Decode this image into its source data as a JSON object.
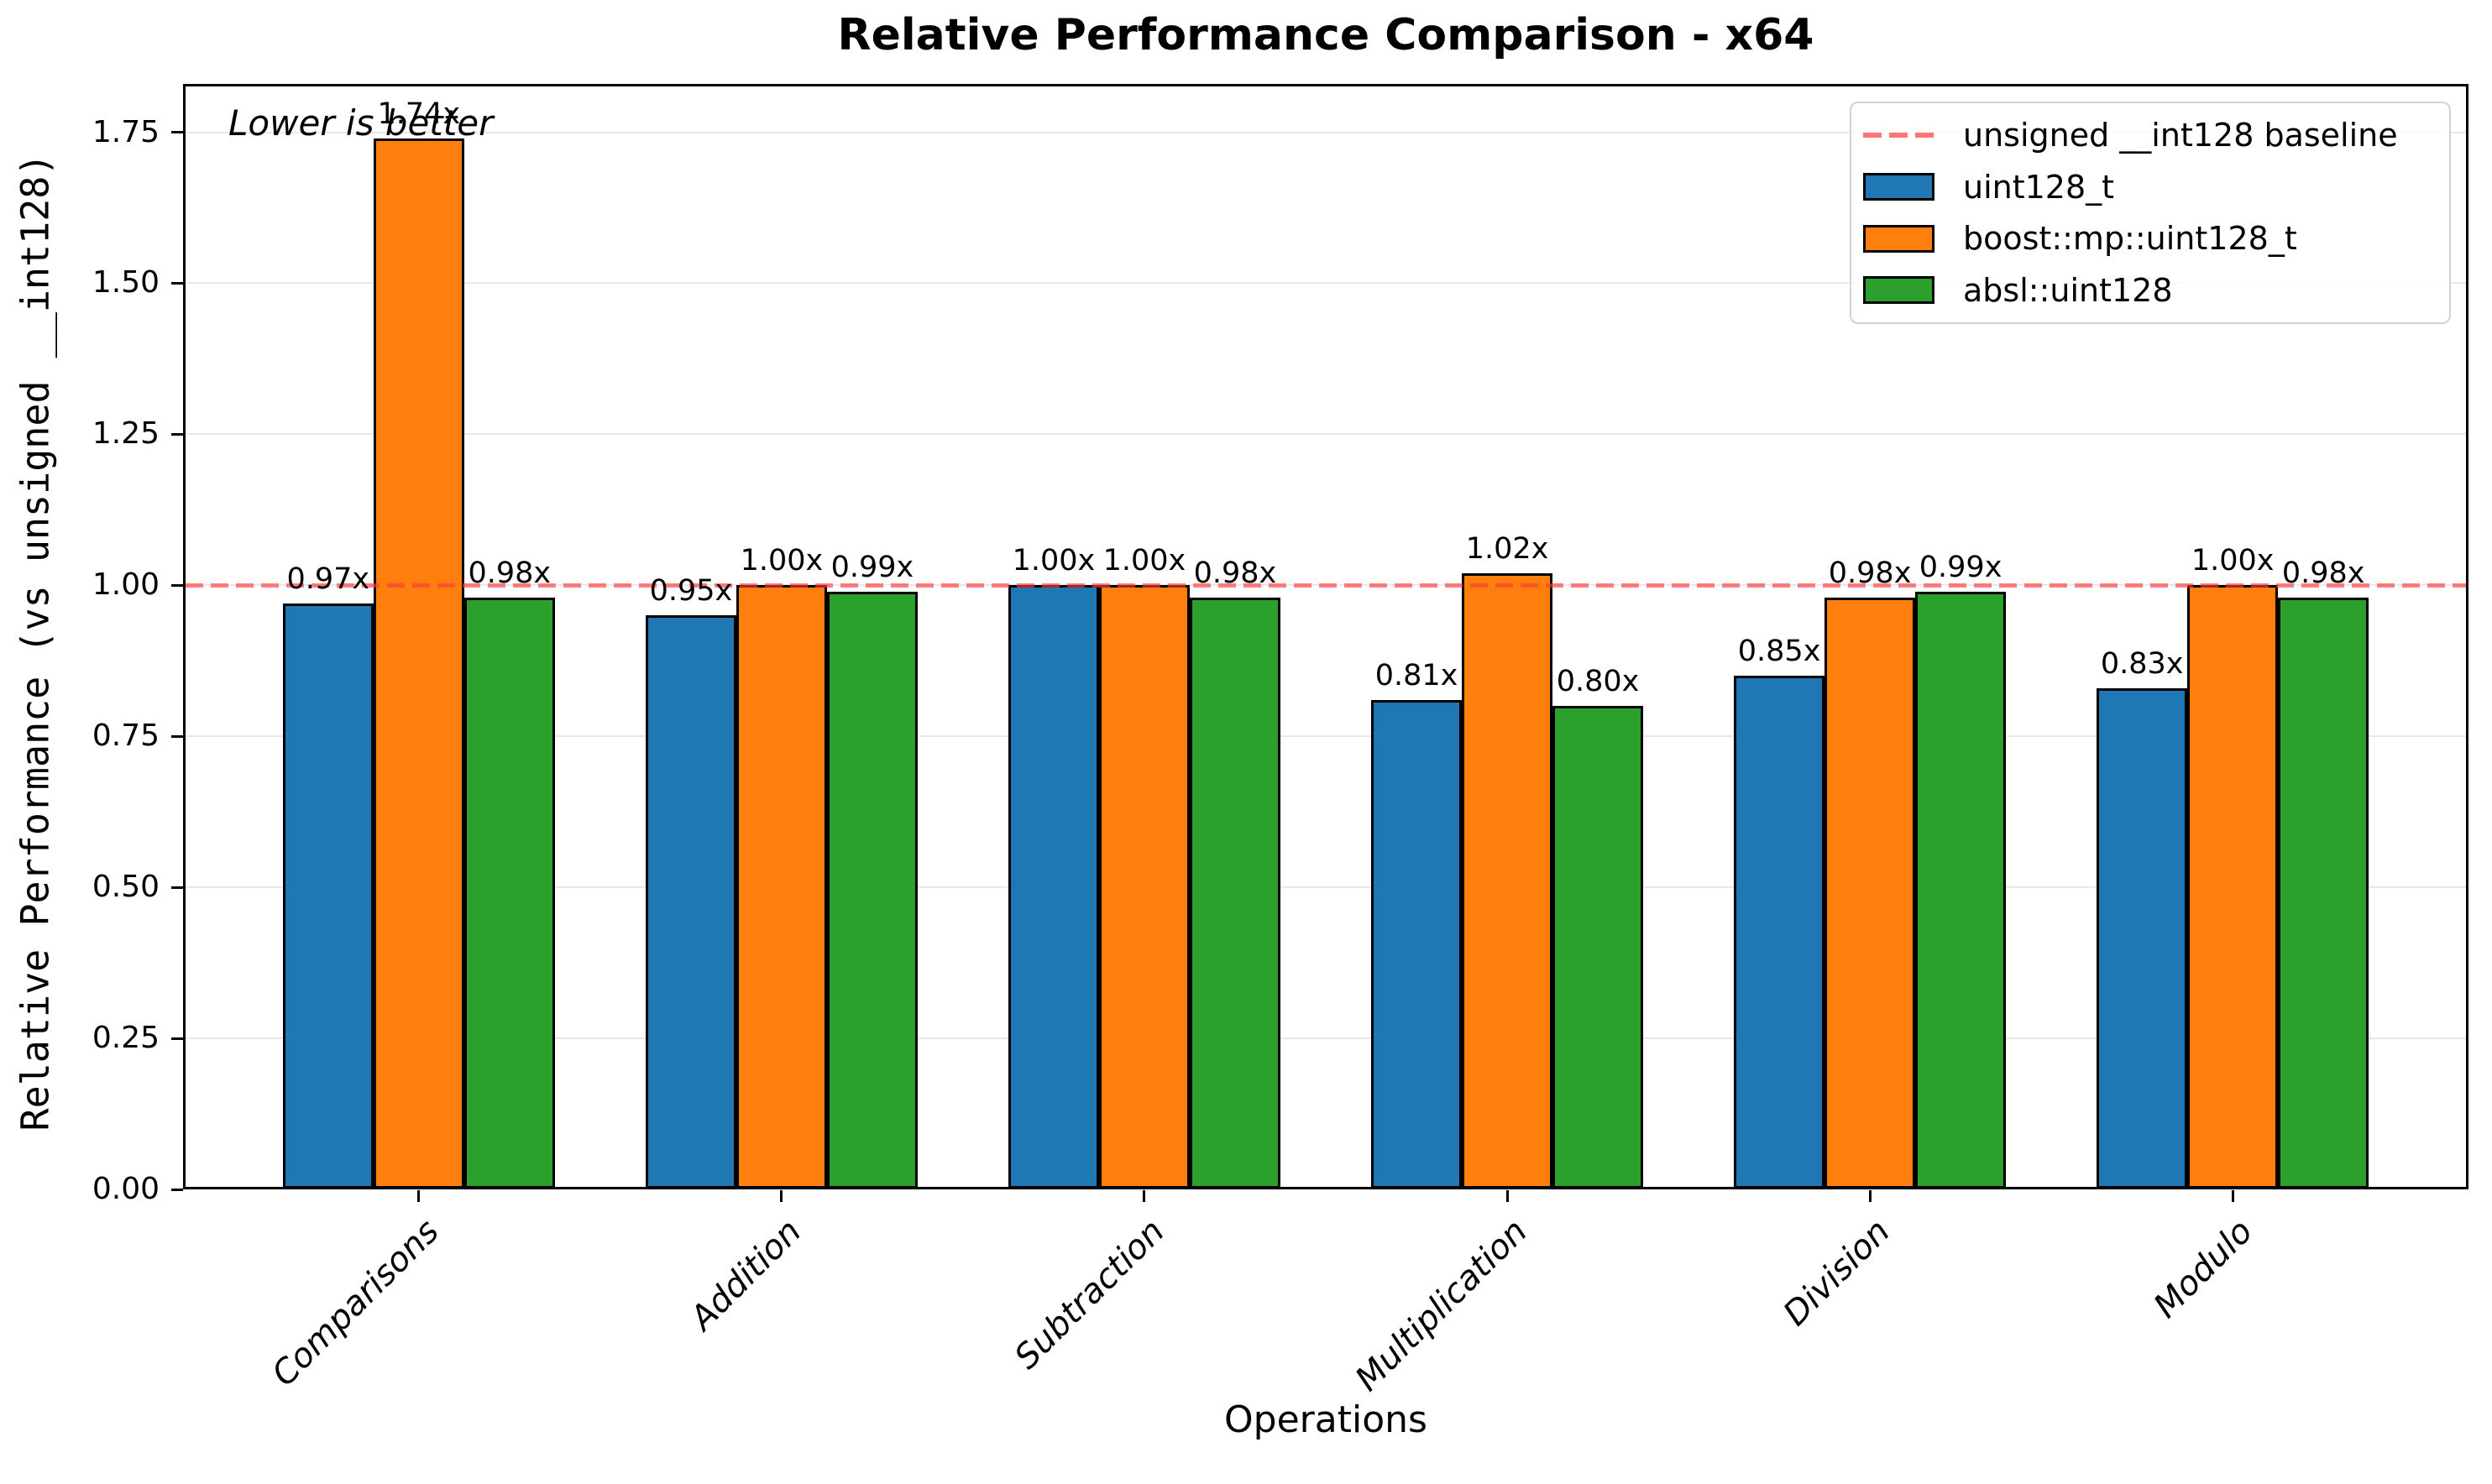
{
  "chart_data": {
    "type": "bar",
    "title": "Relative Performance Comparison - x64",
    "xlabel": "Operations",
    "ylabel": "Relative Performance (vs unsigned __int128)",
    "categories": [
      "Comparisons",
      "Addition",
      "Subtraction",
      "Multiplication",
      "Division",
      "Modulo"
    ],
    "series": [
      {
        "name": "uint128_t",
        "color": "#1f77b4",
        "values": [
          0.97,
          0.95,
          1.0,
          0.81,
          0.85,
          0.83
        ]
      },
      {
        "name": "boost::mp::uint128_t",
        "color": "#ff7f0e",
        "values": [
          1.74,
          1.0,
          1.0,
          1.02,
          0.98,
          1.0
        ]
      },
      {
        "name": "absl::uint128",
        "color": "#2ca02c",
        "values": [
          0.98,
          0.99,
          0.98,
          0.8,
          0.99,
          0.98
        ]
      }
    ],
    "baseline": {
      "value": 1.0,
      "label": "unsigned __int128 baseline",
      "color": "#ff3b3b"
    },
    "annotation": {
      "text": "Lower is better",
      "style": "italic"
    },
    "value_label_suffix": "x",
    "ylim": [
      0,
      1.83
    ],
    "yticks": [
      0.0,
      0.25,
      0.5,
      0.75,
      1.0,
      1.25,
      1.5,
      1.75
    ],
    "ytick_format": "2dp",
    "grid": "horizontal",
    "legend_position": "upper-right",
    "bar_edge_color": "#000000"
  }
}
